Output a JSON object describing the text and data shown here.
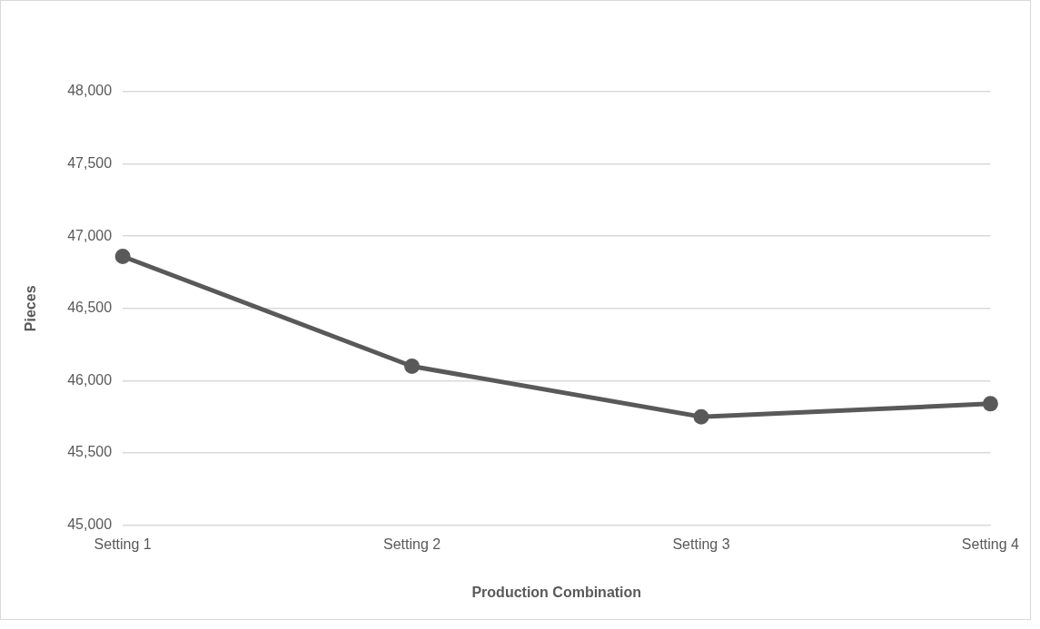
{
  "chart_data": {
    "type": "line",
    "xlabel": "Production Combination",
    "ylabel": "Pieces",
    "categories": [
      "Setting 1",
      "Setting 2",
      "Setting 3",
      "Setting 4"
    ],
    "series": [
      {
        "color": "#595959",
        "values": [
          46860,
          46100,
          45750,
          45840
        ]
      }
    ],
    "ylim": [
      45000,
      48000
    ],
    "yticks": [
      {
        "value": 45000,
        "label": "45,000"
      },
      {
        "value": 45500,
        "label": "45,500"
      },
      {
        "value": 46000,
        "label": "46,000"
      },
      {
        "value": 46500,
        "label": "46,500"
      },
      {
        "value": 47000,
        "label": "47,000"
      },
      {
        "value": 47500,
        "label": "47,500"
      },
      {
        "value": 48000,
        "label": "48,000"
      }
    ],
    "grid": "y",
    "legend": false,
    "marker": "circle",
    "line_style": "solid"
  }
}
